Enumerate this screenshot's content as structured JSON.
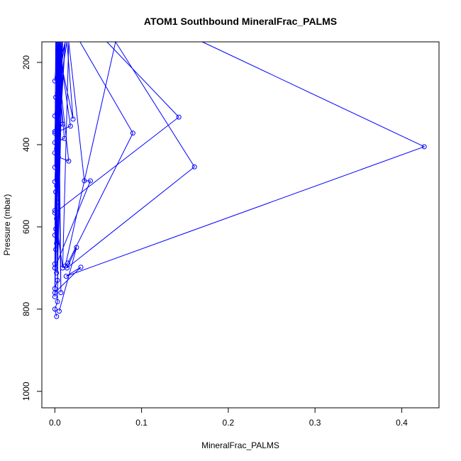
{
  "chart_data": {
    "type": "line",
    "title": "ATOM1 Southbound MineralFrac_PALMS",
    "xlabel": "MineralFrac_PALMS",
    "ylabel": "Pressure (mbar)",
    "xlim": [
      -0.015,
      0.443
    ],
    "ylim": [
      1040,
      150
    ],
    "y_reversed": true,
    "x_ticks": [
      0.0,
      0.1,
      0.2,
      0.3,
      0.4
    ],
    "x_tick_labels": [
      "0.0",
      "0.1",
      "0.2",
      "0.3",
      "0.4"
    ],
    "y_ticks": [
      200,
      400,
      600,
      800,
      1000
    ],
    "y_tick_labels": [
      "200",
      "400",
      "600",
      "800",
      "1000"
    ],
    "series": [
      {
        "color": "#0000ff",
        "marker": "open-circle",
        "x": [
          0.003,
          0.0,
          0.012,
          0.001,
          0.006,
          0.0,
          0.014,
          0.021,
          0.002,
          0.009,
          0.0,
          0.004,
          0.018,
          0.0,
          0.007,
          0.003,
          0.001,
          0.011,
          0.0,
          0.005,
          0.002,
          0.0,
          0.009,
          0.004,
          0.016,
          0.001,
          0.0,
          0.008,
          0.003,
          0.006,
          0.0,
          0.012,
          0.002,
          0.005,
          0.001,
          0.008,
          0.003,
          0.007,
          0.0,
          0.004,
          0.002,
          0.005,
          0.001,
          0.009,
          0.0,
          0.003,
          0.002,
          0.006,
          0.001,
          0.004,
          0.0,
          0.002,
          0.0,
          0.005,
          0.002,
          0.009,
          0.003,
          0.0,
          0.002,
          0.007,
          0.004,
          0.0,
          0.006,
          0.003,
          0.0,
          0.002
        ],
        "y": [
          150,
          245,
          150,
          285,
          150,
          330,
          150,
          338,
          150,
          350,
          368,
          150,
          355,
          372,
          150,
          380,
          150,
          385,
          395,
          150,
          410,
          420,
          150,
          430,
          440,
          150,
          455,
          150,
          470,
          150,
          490,
          150,
          500,
          150,
          515,
          150,
          540,
          150,
          560,
          150,
          580,
          150,
          605,
          150,
          620,
          150,
          640,
          150,
          655,
          150,
          690,
          150,
          700,
          150,
          712,
          150,
          730,
          750,
          150,
          760,
          150,
          770,
          150,
          782,
          800,
          818
        ]
      },
      {
        "color": "#0000ff",
        "marker": "open-circle",
        "x": [
          0.06,
          0.143,
          0.0,
          0.009,
          0.016,
          0.034,
          0.041,
          0.0
        ],
        "y": [
          150,
          333,
          566,
          700,
          150,
          488,
          488,
          700
        ]
      },
      {
        "color": "#0000ff",
        "marker": "open-circle",
        "x": [
          0.029,
          0.09,
          0.015,
          0.012,
          0.07,
          0.161,
          0.014,
          0.025,
          0.005
        ],
        "y": [
          150,
          372,
          688,
          695,
          150,
          454,
          700,
          650,
          805
        ]
      },
      {
        "color": "#0000ff",
        "marker": "open-circle",
        "x": [
          0.17,
          0.426,
          0.013,
          0.03,
          0.0
        ],
        "y": [
          150,
          405,
          720,
          698,
          760
        ]
      }
    ]
  }
}
